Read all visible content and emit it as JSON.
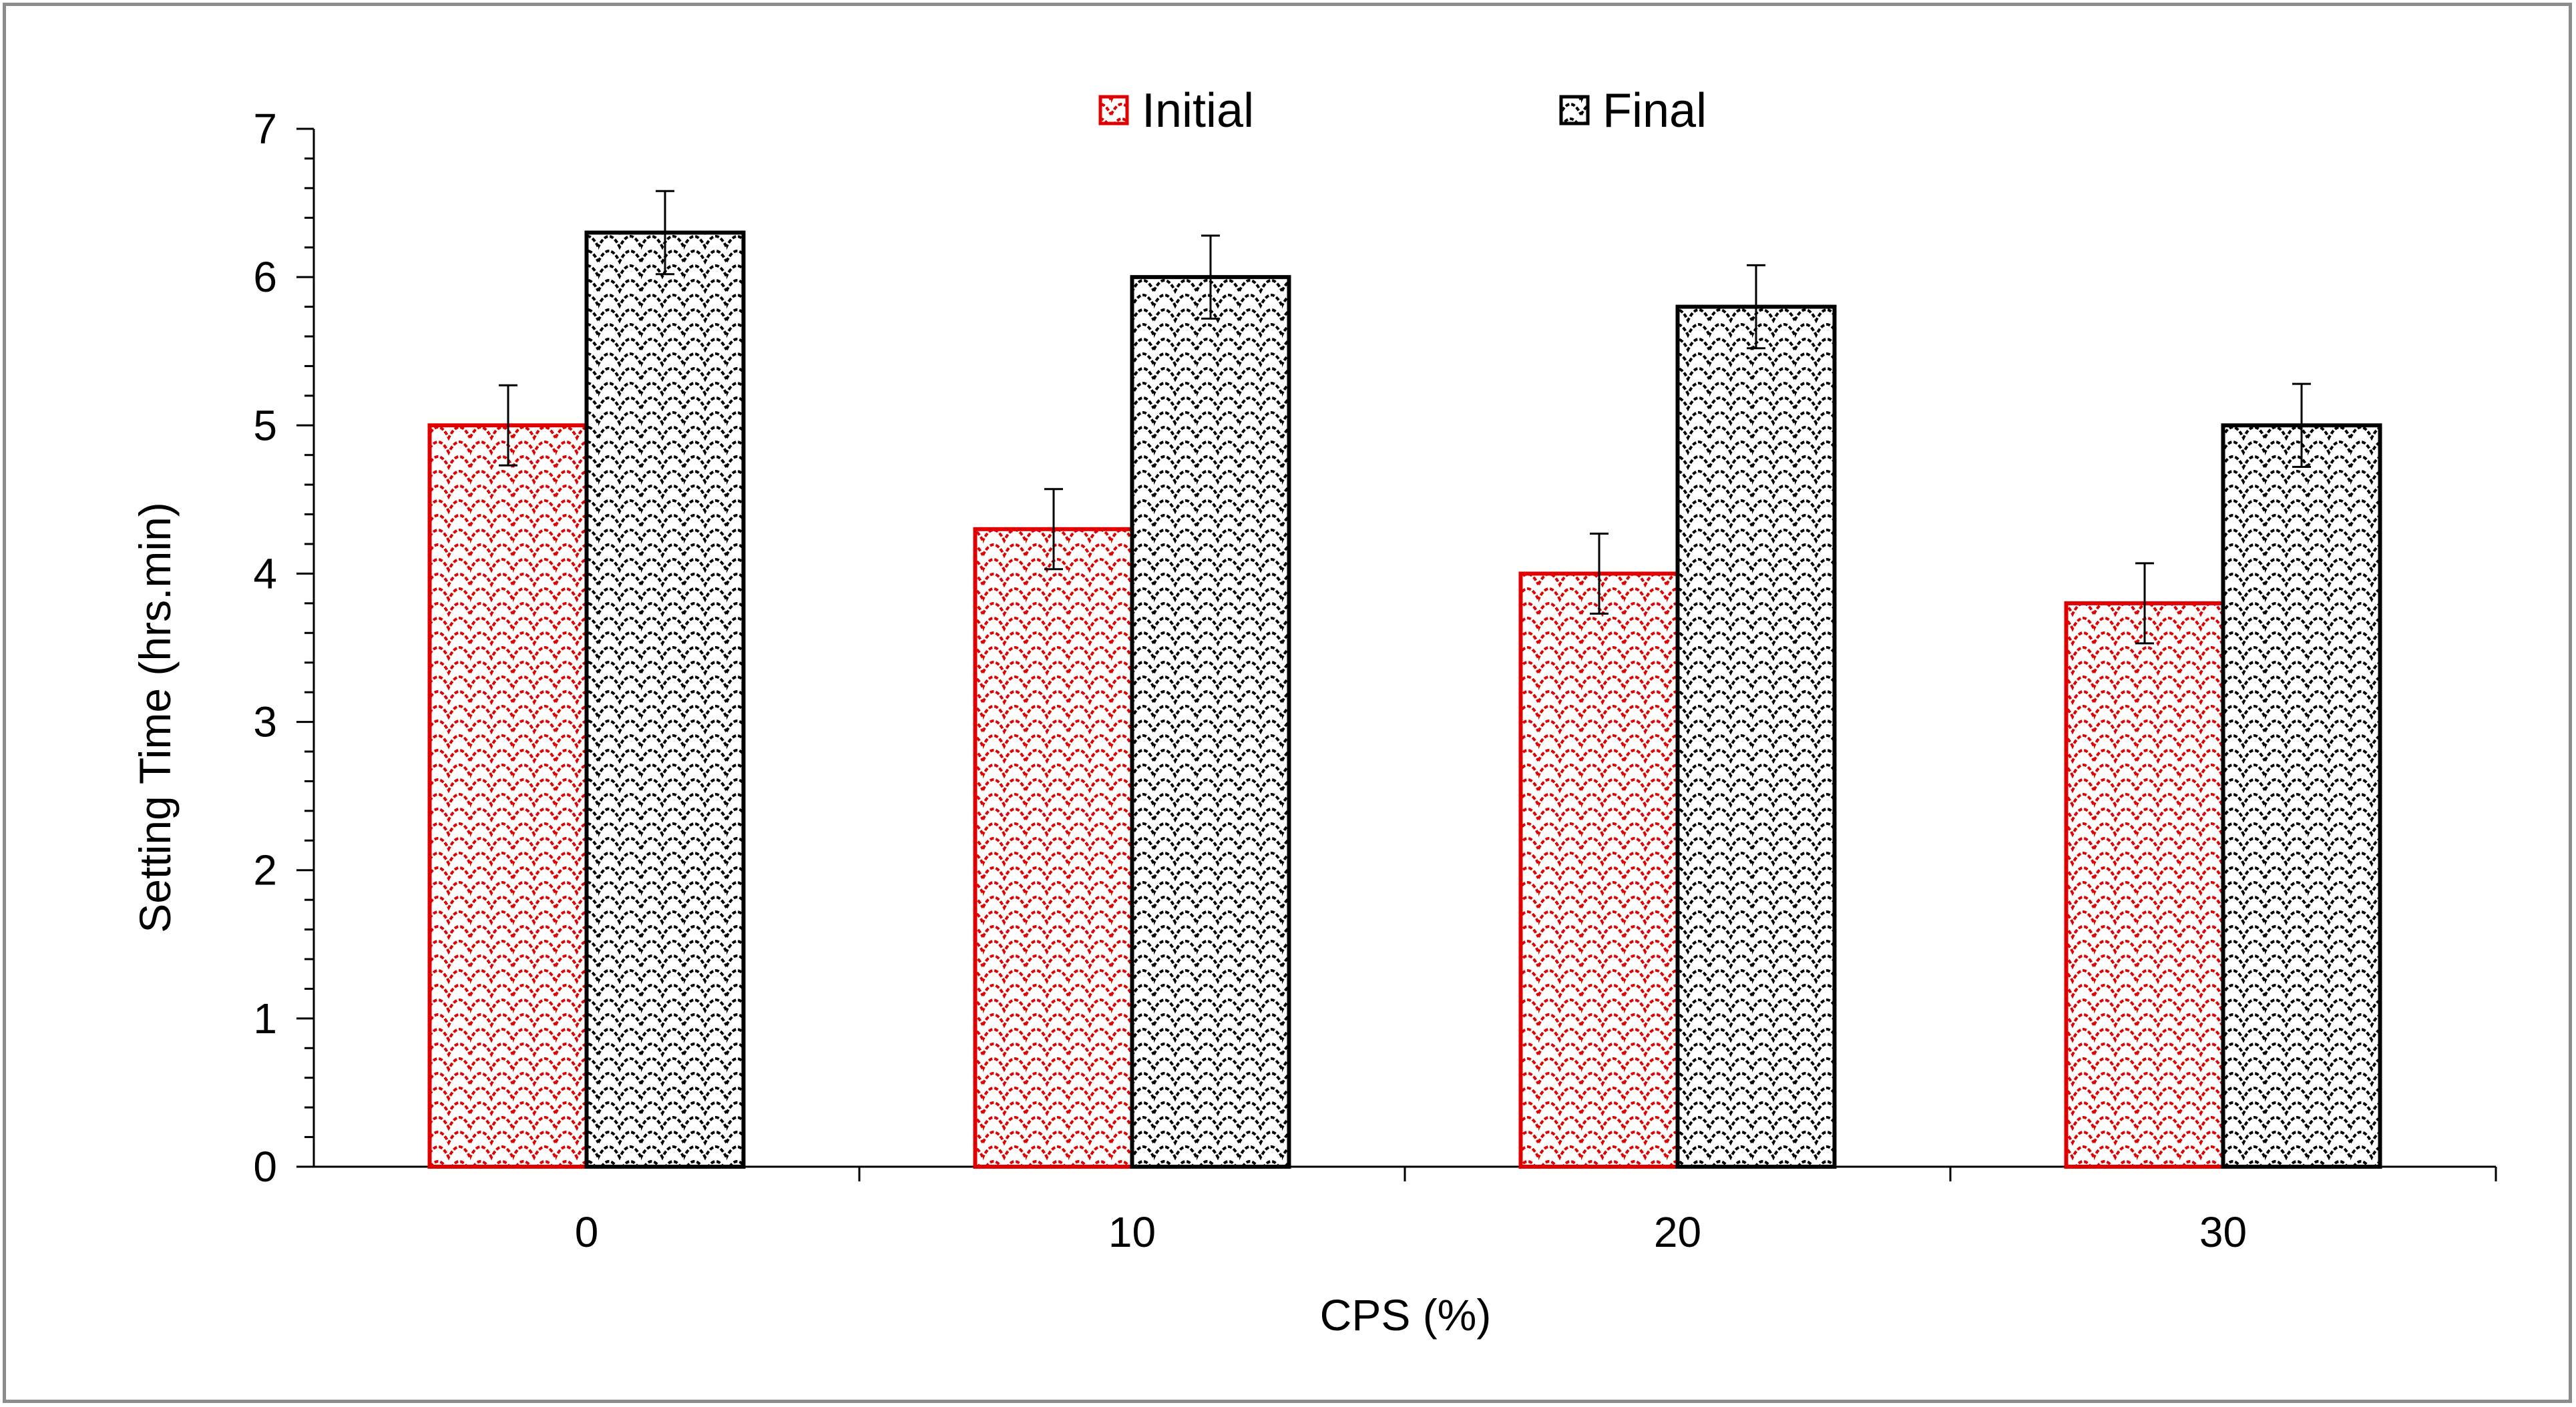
{
  "chart_data": {
    "type": "bar",
    "title": "",
    "xlabel": "CPS (%)",
    "ylabel": "Setting Time (hrs.min)",
    "categories": [
      "0",
      "10",
      "20",
      "30"
    ],
    "ylim": [
      0,
      7
    ],
    "yticks": [
      "0",
      "1",
      "2",
      "3",
      "4",
      "5",
      "6",
      "7"
    ],
    "series": [
      {
        "name": "Initial",
        "values": [
          5.0,
          4.3,
          4.0,
          3.8
        ],
        "errors": [
          0.27,
          0.27,
          0.27,
          0.27
        ],
        "color": "#e00000"
      },
      {
        "name": "Final",
        "values": [
          6.3,
          6.0,
          5.8,
          5.0
        ],
        "errors": [
          0.28,
          0.28,
          0.28,
          0.28
        ],
        "color": "#000000"
      }
    ],
    "legend_position": "top-center",
    "grid": false
  }
}
